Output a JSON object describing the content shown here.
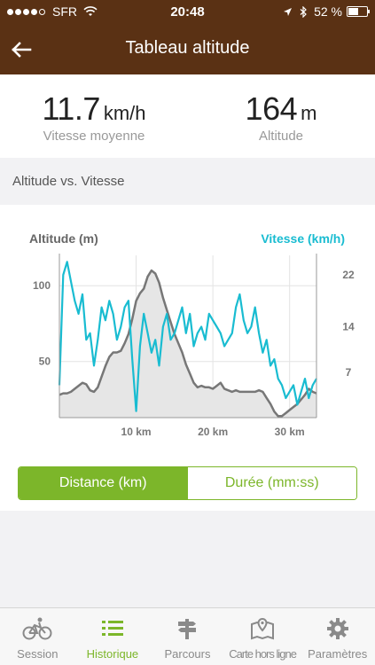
{
  "status": {
    "carrier": "SFR",
    "time": "20:48",
    "battery": "52 %"
  },
  "nav": {
    "title": "Tableau altitude"
  },
  "stats": {
    "speed": {
      "value": "11.7",
      "unit": "km/h",
      "label": "Vitesse moyenne"
    },
    "altitude": {
      "value": "164",
      "unit": "m",
      "label": "Altitude"
    }
  },
  "section": {
    "title": "Altitude vs. Vitesse"
  },
  "chart_data": {
    "type": "line",
    "left_axis_title": "Altitude (m)",
    "right_axis_title": "Vitesse (km/h)",
    "x_ticks": [
      {
        "value": 10,
        "label": "10 km"
      },
      {
        "value": 20,
        "label": "20 km"
      },
      {
        "value": 30,
        "label": "30 km"
      }
    ],
    "y_left_ticks": [
      {
        "value": 50,
        "label": "50"
      },
      {
        "value": 100,
        "label": "100"
      }
    ],
    "y_right_ticks": [
      {
        "value": 7,
        "label": "7"
      },
      {
        "value": 14,
        "label": "14"
      },
      {
        "value": 22,
        "label": "22"
      }
    ],
    "xlim": [
      0,
      33.5
    ],
    "ylim_left": [
      13,
      120
    ],
    "ylim_right": [
      0,
      25
    ],
    "colors": {
      "altitude": "#777777",
      "altitude_fill": "#e6e6e6",
      "speed": "#19bcd1"
    },
    "series": [
      {
        "name": "Altitude (m)",
        "axis": "left",
        "x": [
          0,
          0.5,
          1,
          1.5,
          2,
          2.5,
          3,
          3.5,
          4,
          4.5,
          5,
          5.5,
          6,
          6.5,
          7,
          7.5,
          8,
          8.5,
          9,
          9.5,
          10,
          10.5,
          11,
          11.5,
          12,
          12.5,
          13,
          13.5,
          14,
          14.5,
          15,
          15.5,
          16,
          16.5,
          17,
          17.5,
          18,
          18.5,
          19,
          19.5,
          20,
          20.5,
          21,
          21.5,
          22,
          22.5,
          23,
          23.5,
          24,
          24.5,
          25,
          25.5,
          26,
          26.5,
          27,
          27.5,
          28,
          28.5,
          29,
          29.5,
          30,
          30.5,
          31,
          31.5,
          32,
          32.5,
          33,
          33.5
        ],
        "values": [
          28,
          29,
          29,
          30,
          32,
          34,
          36,
          35,
          31,
          30,
          33,
          40,
          47,
          53,
          56,
          56,
          57,
          62,
          68,
          78,
          90,
          95,
          98,
          106,
          110,
          108,
          102,
          92,
          84,
          76,
          68,
          62,
          56,
          48,
          42,
          36,
          33,
          34,
          33,
          33,
          32,
          34,
          36,
          32,
          31,
          30,
          31,
          30,
          30,
          30,
          30,
          30,
          31,
          30,
          26,
          22,
          17,
          14,
          14,
          16,
          18,
          20,
          22,
          25,
          28,
          32,
          30,
          29
        ]
      },
      {
        "name": "Vitesse (km/h)",
        "axis": "right",
        "x": [
          0,
          0.5,
          1,
          1.5,
          2,
          2.5,
          3,
          3.5,
          4,
          4.5,
          5,
          5.5,
          6,
          6.5,
          7,
          7.5,
          8,
          8.5,
          9,
          9.5,
          10,
          10.5,
          11,
          11.5,
          12,
          12.5,
          13,
          13.5,
          14,
          14.5,
          15,
          15.5,
          16,
          16.5,
          17,
          17.5,
          18,
          18.5,
          19,
          19.5,
          20,
          20.5,
          21,
          21.5,
          22,
          22.5,
          23,
          23.5,
          24,
          24.5,
          25,
          25.5,
          26,
          26.5,
          27,
          27.5,
          28,
          28.5,
          29,
          29.5,
          30,
          30.5,
          31,
          31.5,
          32,
          32.5,
          33,
          33.5
        ],
        "values": [
          5,
          22,
          24,
          21,
          18,
          16,
          19,
          12,
          13,
          8,
          12,
          17,
          15,
          18,
          16,
          12,
          14,
          17,
          18,
          9,
          1,
          11,
          16,
          13,
          10,
          12,
          8,
          14,
          16,
          12,
          13,
          15,
          17,
          13,
          16,
          11,
          13,
          14,
          12,
          16,
          15,
          14,
          13,
          11,
          12,
          13,
          17,
          19,
          15,
          13,
          14,
          17,
          13,
          10,
          12,
          8,
          9,
          6,
          5,
          3,
          4,
          5,
          2,
          4,
          6,
          3,
          5,
          6
        ]
      }
    ]
  },
  "toggle": {
    "distance": "Distance (km)",
    "duree": "Durée (mm:ss)"
  },
  "tabs": [
    {
      "label": "Session",
      "icon": "bicycle-icon"
    },
    {
      "label": "Historique",
      "icon": "list-icon"
    },
    {
      "label": "Parcours",
      "icon": "signpost-icon"
    },
    {
      "label": "Carte hors ligne",
      "icon": "map-icon"
    },
    {
      "label": "Paramètres",
      "icon": "gear-icon"
    }
  ]
}
